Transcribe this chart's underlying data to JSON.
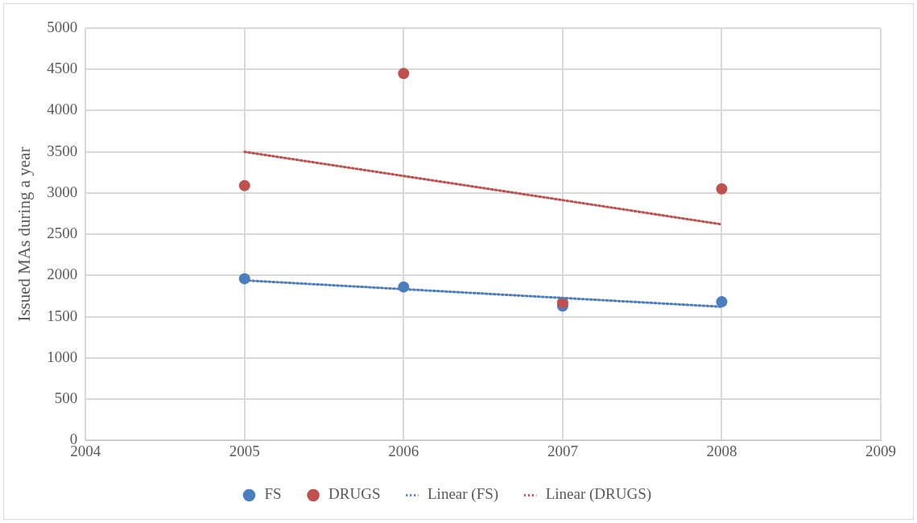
{
  "chart_data": {
    "type": "scatter",
    "ylabel": "Issued MAs during a year",
    "xlim": [
      2004,
      2009
    ],
    "xticks": [
      2004,
      2005,
      2006,
      2007,
      2008,
      2009
    ],
    "ylim": [
      0,
      5000
    ],
    "yticks": [
      0,
      500,
      1000,
      1500,
      2000,
      2500,
      3000,
      3500,
      4000,
      4500,
      5000
    ],
    "grid": true,
    "legend": "bottom",
    "marker": "circle",
    "series": [
      {
        "name": "FS",
        "color": "#4a7ebf",
        "x": [
          2005,
          2006,
          2007,
          2008
        ],
        "values": [
          1960,
          1860,
          1630,
          1680
        ]
      },
      {
        "name": "DRUGS",
        "color": "#c0504d",
        "x": [
          2005,
          2006,
          2007,
          2008
        ],
        "values": [
          3090,
          4450,
          1670,
          3050
        ]
      },
      {
        "name": "Linear (FS)",
        "type": "line",
        "line_style": "dotted",
        "marker": "none",
        "color": "#4a7ebf",
        "x": [
          2005,
          2008
        ],
        "values": [
          1940,
          1620
        ]
      },
      {
        "name": "Linear (DRUGS)",
        "type": "line",
        "line_style": "dotted",
        "marker": "none",
        "color": "#c0504d",
        "x": [
          2005,
          2008
        ],
        "values": [
          3500,
          2620
        ]
      }
    ]
  }
}
